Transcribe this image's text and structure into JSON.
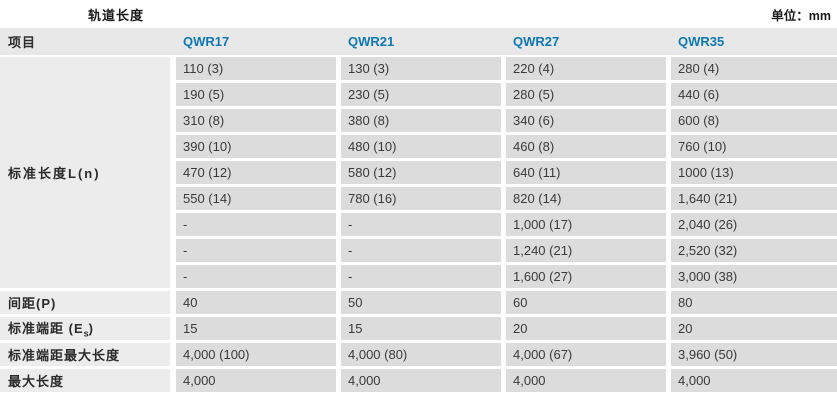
{
  "page": {
    "title": "轨道长度",
    "unit_note": "单位：mm"
  },
  "colors": {
    "accent_blue": "#0e78b5",
    "header_row_bg": "#e8e8e8",
    "label_cell_bg": "#ececec",
    "value_cell_bg": "#dcdcdc",
    "separator": "#ffffff"
  },
  "table": {
    "columns": [
      "项目",
      "QWR17",
      "QWR21",
      "QWR27",
      "QWR35"
    ],
    "standard_length": {
      "label": "标准长度L(n)",
      "rows": [
        [
          "110 (3)",
          "130 (3)",
          "220 (4)",
          "280 (4)"
        ],
        [
          "190 (5)",
          "230 (5)",
          "280 (5)",
          "440 (6)"
        ],
        [
          "310 (8)",
          "380 (8)",
          "340 (6)",
          "600 (8)"
        ],
        [
          "390 (10)",
          "480 (10)",
          "460 (8)",
          "760 (10)"
        ],
        [
          "470 (12)",
          "580 (12)",
          "640 (11)",
          "1000 (13)"
        ],
        [
          "550 (14)",
          "780 (16)",
          "820 (14)",
          "1,640 (21)"
        ],
        [
          "-",
          "-",
          "1,000 (17)",
          "2,040 (26)"
        ],
        [
          "-",
          "-",
          "1,240 (21)",
          "2,520 (32)"
        ],
        [
          "-",
          "-",
          "1,600 (27)",
          "3,000 (38)"
        ]
      ]
    },
    "pitch": {
      "label": "间距(P)",
      "values": [
        "40",
        "50",
        "60",
        "80"
      ]
    },
    "standard_end": {
      "label_pre": "标准端距 (E",
      "label_sub": "s",
      "label_post": ")",
      "values": [
        "15",
        "15",
        "20",
        "20"
      ]
    },
    "standard_end_max": {
      "label": "标准端距最大长度",
      "values": [
        "4,000 (100)",
        "4,000 (80)",
        "4,000 (67)",
        "3,960 (50)"
      ]
    },
    "max_length": {
      "label": "最大长度",
      "values": [
        "4,000",
        "4,000",
        "4,000",
        "4,000"
      ]
    }
  }
}
